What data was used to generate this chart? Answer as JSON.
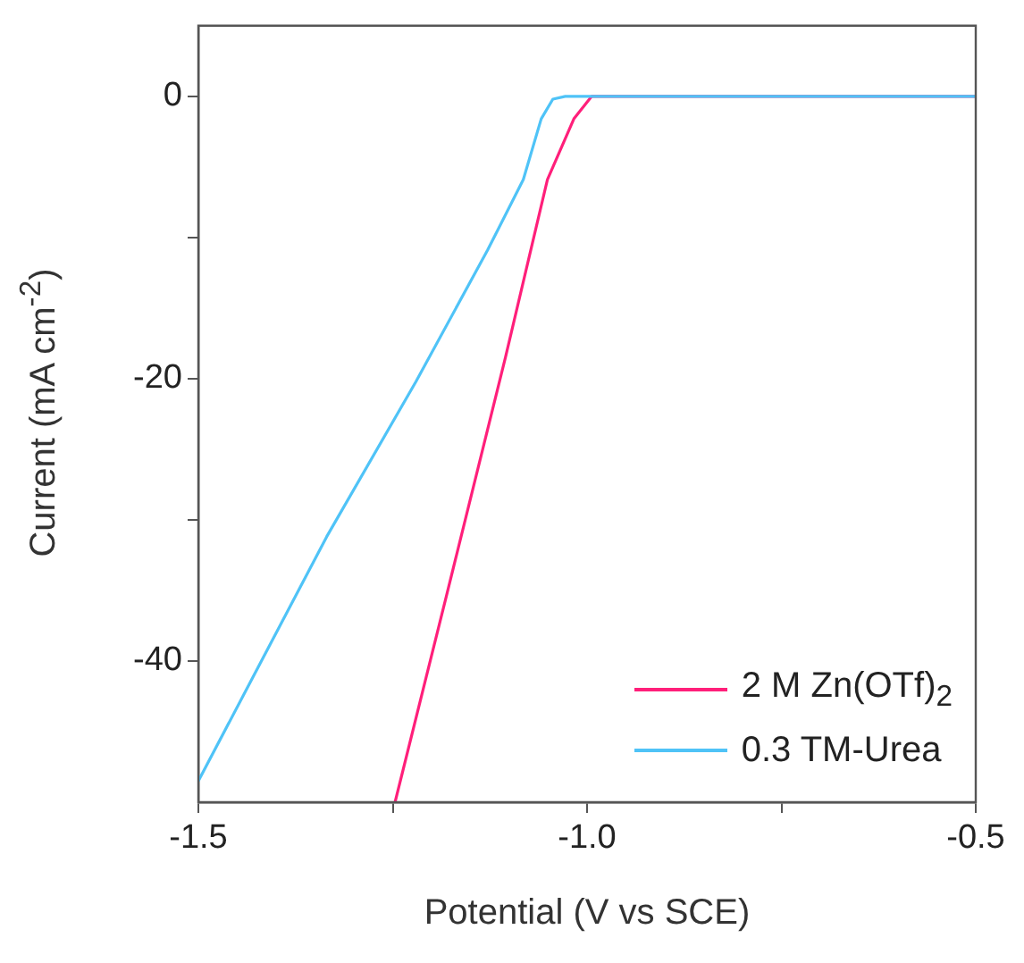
{
  "chart_data": {
    "type": "line",
    "xlabel": "Potential (V vs SCE)",
    "ylabel": "Current (mA cm$^{-2}$)",
    "xlim": [
      -1.5,
      -0.5
    ],
    "xticks": [
      {
        "value": -1.5,
        "label": "-1.5"
      },
      {
        "value": -1.25,
        "label": null
      },
      {
        "value": -1.0,
        "label": "-1.0"
      },
      {
        "value": -0.75,
        "label": null
      },
      {
        "value": -0.5,
        "label": "-0.5"
      }
    ],
    "ylim": [
      -50,
      5
    ],
    "yticks": [
      {
        "value": -40,
        "label": "-40"
      },
      {
        "value": -30,
        "label": null
      },
      {
        "value": -20,
        "label": "-20"
      },
      {
        "value": -10,
        "label": null
      },
      {
        "value": 0,
        "label": "0"
      }
    ],
    "grid": false,
    "legend": "bottom right",
    "marker": "none",
    "line_style": "solid",
    "series": [
      {
        "name": "2 M Zn(OTf)$_{2}$",
        "color": "#ff1f7a",
        "x": [
          -1.247,
          -1.181,
          -1.105,
          -1.051,
          -1.017,
          -0.994,
          -0.5
        ],
        "values": [
          -50,
          -35.4,
          -18.5,
          -5.9,
          -1.6,
          0,
          0
        ]
      },
      {
        "name": "0.3 TM-Urea",
        "color": "#4fc3f7",
        "x": [
          -1.5,
          -1.335,
          -1.22,
          -1.128,
          -1.082,
          -1.059,
          -1.044,
          -1.028,
          -0.5
        ],
        "values": [
          -48.5,
          -31.2,
          -20.2,
          -10.9,
          -5.9,
          -1.6,
          -0.2,
          0,
          0
        ]
      }
    ]
  }
}
